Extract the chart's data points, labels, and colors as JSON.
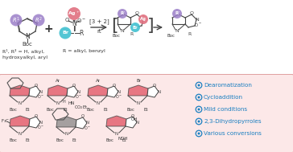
{
  "bg_white": "#ffffff",
  "bg_pink": "#fce8e8",
  "bullet_color": "#1a7fc1",
  "bullet_points": [
    "Dearomatization",
    "Cycloaddition",
    "Mild conditions",
    "2,3-Dihydropyrroles",
    "Various conversions"
  ],
  "r1r2_label": "R¹, R² = H, alkyl,\nhydroxyalkyl, aryl",
  "r_label": "R = alkyl, benzyl",
  "purple_color": "#9b7fc8",
  "pink_red_color": "#e05060",
  "cyan_color": "#40c0d0",
  "ag_pink": "#e07080",
  "line_color": "#444444",
  "text_color": "#333333",
  "bond_color": "#555555"
}
